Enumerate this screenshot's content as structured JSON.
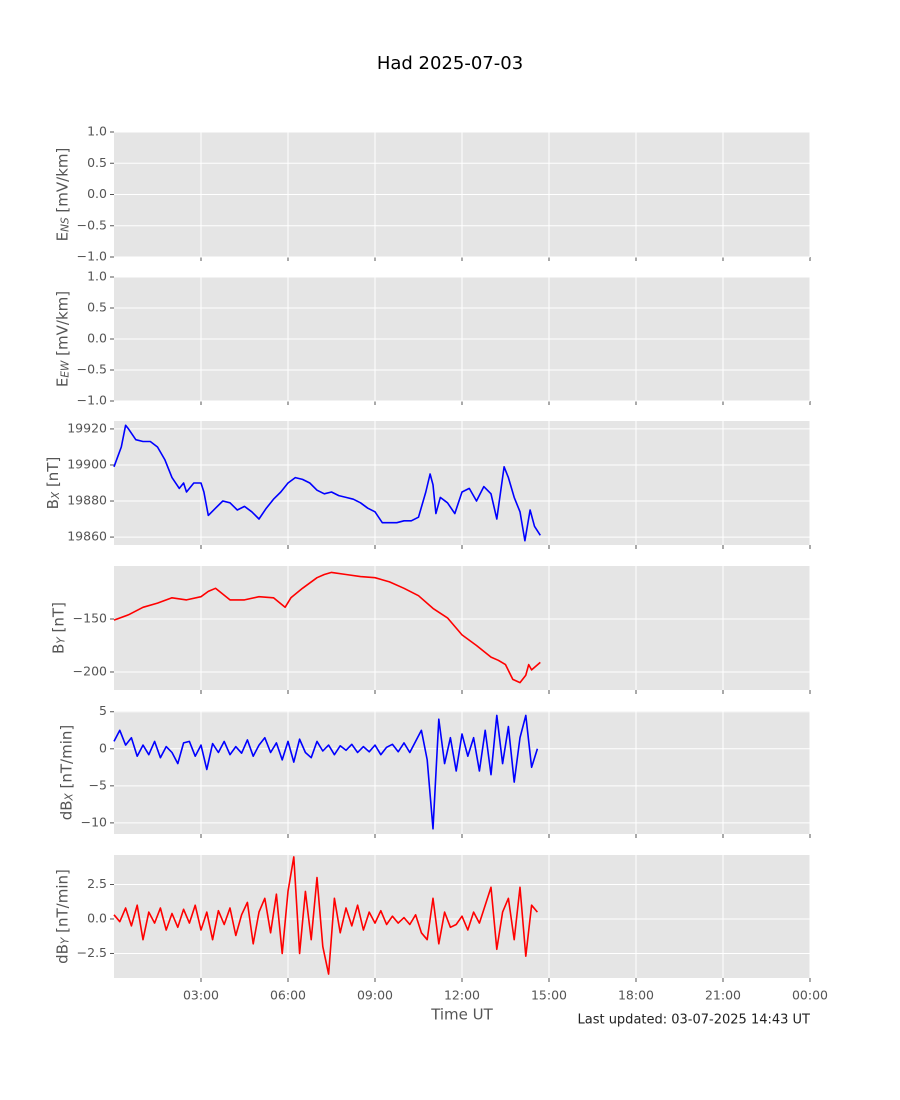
{
  "figure": {
    "title": "Had 2025-07-03",
    "xlabel": "Time UT",
    "note": "Last updated: 03-07-2025 14:43 UT"
  },
  "chart_data": [
    {
      "type": "line",
      "ylabel": {
        "main": "E",
        "sub": "NS",
        "unit": " [mV/km]"
      },
      "grid": true,
      "ylim": [
        -1,
        1
      ],
      "yticks": [
        {
          "value": -1,
          "label": "−1.0"
        },
        {
          "value": -0.5,
          "label": "−0.5"
        },
        {
          "value": 0,
          "label": "0.0"
        },
        {
          "value": 0.5,
          "label": "0.5"
        },
        {
          "value": 1,
          "label": "1.0"
        }
      ],
      "series": []
    },
    {
      "type": "line",
      "ylabel": {
        "main": "E",
        "sub": "EW",
        "unit": " [mV/km]"
      },
      "grid": true,
      "ylim": [
        -1,
        1
      ],
      "yticks": [
        {
          "value": -1,
          "label": "−1.0"
        },
        {
          "value": -0.5,
          "label": "−0.5"
        },
        {
          "value": 0,
          "label": "0.0"
        },
        {
          "value": 0.5,
          "label": "0.5"
        },
        {
          "value": 1,
          "label": "1.0"
        }
      ],
      "series": []
    },
    {
      "type": "line",
      "ylabel": {
        "main": "B",
        "sub": "X",
        "unit": " [nT]"
      },
      "grid": true,
      "ylim": [
        19855.6,
        19924.4
      ],
      "yticks": [
        19860,
        19880,
        19900,
        19920
      ],
      "series": [
        {
          "color": "#0000ff",
          "x": [
            0,
            0.25,
            0.4,
            0.5,
            0.75,
            1,
            1.25,
            1.5,
            1.75,
            2,
            2.25,
            2.4,
            2.5,
            2.75,
            3,
            3.1,
            3.25,
            3.5,
            3.75,
            4,
            4.25,
            4.5,
            4.75,
            5,
            5.25,
            5.5,
            5.75,
            6,
            6.25,
            6.5,
            6.75,
            7,
            7.25,
            7.5,
            7.75,
            8,
            8.25,
            8.5,
            8.75,
            9,
            9.25,
            9.5,
            9.75,
            10,
            10.25,
            10.5,
            10.75,
            10.9,
            11,
            11.1,
            11.25,
            11.5,
            11.75,
            12,
            12.25,
            12.5,
            12.75,
            13,
            13.2,
            13.45,
            13.6,
            13.8,
            14,
            14.17,
            14.35,
            14.5,
            14.7
          ],
          "values": [
            19899,
            19910,
            19922,
            19920,
            19914,
            19913,
            19913,
            19910,
            19903,
            19893,
            19887,
            19890,
            19885,
            19890,
            19890,
            19885,
            19872,
            19876,
            19880,
            19879,
            19875,
            19877,
            19874,
            19870,
            19876,
            19881,
            19885,
            19890,
            19893,
            19892,
            19890,
            19886,
            19884,
            19885,
            19883,
            19882,
            19881,
            19879,
            19876,
            19874,
            19868,
            19868,
            19868,
            19869,
            19869,
            19871,
            19885,
            19895,
            19889,
            19873,
            19882,
            19879,
            19873,
            19885,
            19887,
            19880,
            19888,
            19884,
            19870,
            19899,
            19893,
            19882,
            19874,
            19858,
            19875,
            19866,
            19861
          ]
        }
      ]
    },
    {
      "type": "line",
      "ylabel": {
        "main": "B",
        "sub": "Y",
        "unit": " [nT]"
      },
      "grid": true,
      "ylim": [
        -217,
        -100
      ],
      "yticks": [
        {
          "value": -200,
          "label": "−200"
        },
        {
          "value": -150,
          "label": "−150"
        }
      ],
      "series": [
        {
          "color": "#ff0000",
          "x": [
            0,
            0.5,
            1,
            1.5,
            2,
            2.5,
            3,
            3.25,
            3.5,
            4,
            4.5,
            5,
            5.5,
            5.9,
            6.1,
            6.5,
            7,
            7.25,
            7.5,
            8,
            8.5,
            9,
            9.5,
            10,
            10.5,
            11,
            11.5,
            12,
            12.5,
            13,
            13.25,
            13.5,
            13.75,
            14,
            14.2,
            14.3,
            14.4,
            14.7
          ],
          "values": [
            -151,
            -146,
            -139,
            -135,
            -130,
            -132,
            -129,
            -124,
            -121,
            -132,
            -132,
            -129,
            -130,
            -139,
            -130,
            -121,
            -111,
            -108,
            -106,
            -108,
            -110,
            -111,
            -115,
            -121,
            -128,
            -140,
            -149,
            -165,
            -175,
            -186,
            -189,
            -193,
            -207,
            -210,
            -203,
            -193,
            -198,
            -191
          ]
        }
      ]
    },
    {
      "type": "line",
      "ylabel": {
        "main": "dB",
        "sub": "X",
        "unit": " [nT/min]"
      },
      "grid": true,
      "ylim": [
        -11.5,
        5.1
      ],
      "yticks": [
        {
          "value": -10,
          "label": "−10"
        },
        {
          "value": -5,
          "label": "−5"
        },
        0,
        5
      ],
      "series": [
        {
          "color": "#0000ff",
          "x": [
            0,
            0.2,
            0.4,
            0.6,
            0.8,
            1,
            1.2,
            1.4,
            1.6,
            1.8,
            2,
            2.2,
            2.4,
            2.6,
            2.8,
            3,
            3.2,
            3.4,
            3.6,
            3.8,
            4,
            4.2,
            4.4,
            4.6,
            4.8,
            5,
            5.2,
            5.4,
            5.6,
            5.8,
            6,
            6.2,
            6.4,
            6.6,
            6.8,
            7,
            7.2,
            7.4,
            7.6,
            7.8,
            8,
            8.2,
            8.4,
            8.6,
            8.8,
            9,
            9.2,
            9.4,
            9.6,
            9.8,
            10,
            10.2,
            10.4,
            10.6,
            10.8,
            11,
            11.2,
            11.4,
            11.6,
            11.8,
            12,
            12.2,
            12.4,
            12.6,
            12.8,
            13,
            13.2,
            13.4,
            13.6,
            13.8,
            14,
            14.2,
            14.4,
            14.6
          ],
          "values": [
            1,
            2.5,
            0.5,
            1.5,
            -1,
            0.5,
            -0.8,
            1,
            -1.2,
            0.3,
            -0.5,
            -2,
            0.8,
            1,
            -1,
            0.5,
            -2.8,
            0.7,
            -0.5,
            1,
            -0.8,
            0.3,
            -0.6,
            1.2,
            -1,
            0.5,
            1.5,
            -0.5,
            0.8,
            -1.5,
            1,
            -1.8,
            1.3,
            -0.5,
            -1.2,
            1,
            -0.3,
            0.5,
            -0.8,
            0.4,
            -0.2,
            0.6,
            -0.5,
            0.3,
            -0.4,
            0.5,
            -0.8,
            0.2,
            0.6,
            -0.4,
            0.8,
            -0.5,
            1,
            2.5,
            -1.5,
            -10.8,
            4,
            -2,
            1.5,
            -3,
            2,
            -1,
            1.5,
            -3,
            2.5,
            -3.5,
            4.5,
            -2,
            3,
            -4.5,
            1.5,
            4.5,
            -2.5,
            0
          ]
        }
      ]
    },
    {
      "type": "line",
      "ylabel": {
        "main": "dB",
        "sub": "Y",
        "unit": " [nT/min]"
      },
      "grid": true,
      "ylim": [
        -4.28,
        4.64
      ],
      "yticks": [
        {
          "value": -2.5,
          "label": "−2.5"
        },
        {
          "value": 0,
          "label": "0.0"
        },
        {
          "value": 2.5,
          "label": "2.5"
        }
      ],
      "xlim": [
        0,
        24
      ],
      "xticks": [
        {
          "value": 3,
          "label": "03:00"
        },
        {
          "value": 6,
          "label": "06:00"
        },
        {
          "value": 9,
          "label": "09:00"
        },
        {
          "value": 12,
          "label": "12:00"
        },
        {
          "value": 15,
          "label": "15:00"
        },
        {
          "value": 18,
          "label": "18:00"
        },
        {
          "value": 21,
          "label": "21:00"
        },
        {
          "value": 24,
          "label": "00:00"
        }
      ],
      "series": [
        {
          "color": "#ff0000",
          "x": [
            0,
            0.2,
            0.4,
            0.6,
            0.8,
            1,
            1.2,
            1.4,
            1.6,
            1.8,
            2,
            2.2,
            2.4,
            2.6,
            2.8,
            3,
            3.2,
            3.4,
            3.6,
            3.8,
            4,
            4.2,
            4.4,
            4.6,
            4.8,
            5,
            5.2,
            5.4,
            5.6,
            5.8,
            6,
            6.2,
            6.4,
            6.6,
            6.8,
            7,
            7.2,
            7.4,
            7.6,
            7.8,
            8,
            8.2,
            8.4,
            8.6,
            8.8,
            9,
            9.2,
            9.4,
            9.6,
            9.8,
            10,
            10.2,
            10.4,
            10.6,
            10.8,
            11,
            11.2,
            11.4,
            11.6,
            11.8,
            12,
            12.2,
            12.4,
            12.6,
            12.8,
            13,
            13.2,
            13.4,
            13.6,
            13.8,
            14,
            14.2,
            14.4,
            14.6
          ],
          "values": [
            0.3,
            -0.2,
            0.8,
            -0.5,
            1,
            -1.5,
            0.5,
            -0.3,
            0.8,
            -0.8,
            0.4,
            -0.6,
            0.7,
            -0.3,
            1,
            -0.8,
            0.5,
            -1.5,
            0.6,
            -0.4,
            0.8,
            -1.2,
            0.3,
            1.2,
            -1.8,
            0.5,
            1.5,
            -1,
            1.8,
            -2.5,
            2,
            4.5,
            -2.5,
            2,
            -1.5,
            3,
            -2,
            -4,
            1.5,
            -1,
            0.8,
            -0.5,
            1,
            -0.8,
            0.5,
            -0.3,
            0.6,
            -0.4,
            0.2,
            -0.3,
            0.1,
            -0.4,
            0.3,
            -1,
            -1.5,
            1.5,
            -1.8,
            0.5,
            -0.6,
            -0.4,
            0.2,
            -0.8,
            0.5,
            -0.3,
            1,
            2.3,
            -2.2,
            0.5,
            1.5,
            -1.5,
            2.3,
            -2.7,
            1,
            0.5
          ]
        }
      ]
    }
  ]
}
